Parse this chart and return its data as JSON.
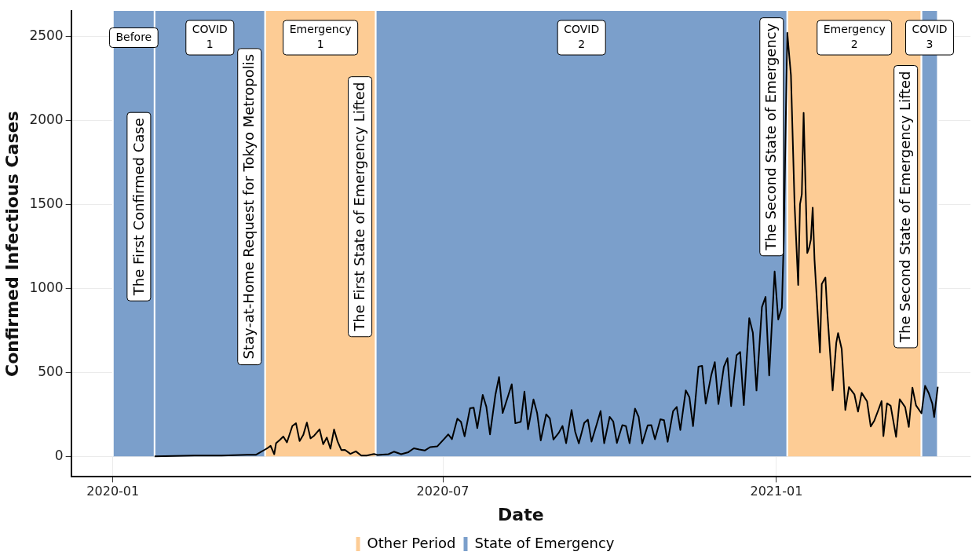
{
  "chart_data": {
    "type": "line",
    "xlabel": "Date",
    "ylabel": "Confirmed Infectious Cases",
    "xlim": [
      "2019-12-09",
      "2021-04-18"
    ],
    "xticks": [
      "2020-01",
      "2020-07",
      "2021-01"
    ],
    "ylim": [
      -122,
      2650
    ],
    "yticks": [
      0,
      500,
      1000,
      1500,
      2000,
      2500
    ],
    "grid": true,
    "legend": "bottom",
    "marker": "none",
    "line_style": "solid",
    "bands": [
      {
        "axis": "x",
        "from": "2020-01-01",
        "to": "2020-01-24",
        "label": "Before",
        "color": "#7b9fcb"
      },
      {
        "axis": "x",
        "from": "2020-01-24",
        "to": "2020-03-25",
        "label": "COVID\n1",
        "color": "#7b9fcb"
      },
      {
        "axis": "x",
        "from": "2020-03-25",
        "to": "2020-05-25",
        "label": "Emergency\n1",
        "color": "#fdcc95"
      },
      {
        "axis": "x",
        "from": "2020-05-25",
        "to": "2021-01-07",
        "label": "COVID\n2",
        "color": "#7b9fcb"
      },
      {
        "axis": "x",
        "from": "2021-01-07",
        "to": "2021-03-22",
        "label": "Emergency\n2",
        "color": "#fdcc95"
      },
      {
        "axis": "x",
        "from": "2021-03-22",
        "to": "2021-03-31",
        "label": "COVID\n3",
        "color": "#7b9fcb"
      }
    ],
    "annotations": [
      "The First Confirmed Case",
      "Stay-at-Home Request for Tokyo Metropolis",
      "The First State of Emergency Lifted",
      "The Second State of Emergency",
      "The Second State of Emergency Lifted"
    ],
    "series": [
      {
        "name": "Other Period",
        "color": "#fdcc95",
        "type": "area"
      },
      {
        "name": "State of Emergency",
        "color": "#7b9fcb",
        "type": "area"
      },
      {
        "color": "#000000",
        "x": [
          "2020-01-24",
          "2020-02-15",
          "2020-03-01",
          "2020-03-15",
          "2020-03-20",
          "2020-03-25",
          "2020-03-26",
          "2020-03-28",
          "2020-03-30",
          "2020-03-31",
          "2020-04-02",
          "2020-04-04",
          "2020-04-06",
          "2020-04-09",
          "2020-04-11",
          "2020-04-13",
          "2020-04-15",
          "2020-04-17",
          "2020-04-19",
          "2020-04-21",
          "2020-04-24",
          "2020-04-26",
          "2020-04-28",
          "2020-04-30",
          "2020-05-02",
          "2020-05-04",
          "2020-05-06",
          "2020-05-08",
          "2020-05-11",
          "2020-05-14",
          "2020-05-17",
          "2020-05-20",
          "2020-05-24",
          "2020-05-26",
          "2020-06-01",
          "2020-06-04",
          "2020-06-08",
          "2020-06-12",
          "2020-06-15",
          "2020-06-18",
          "2020-06-21",
          "2020-06-24",
          "2020-06-28",
          "2020-07-02",
          "2020-07-04",
          "2020-07-06",
          "2020-07-09",
          "2020-07-11",
          "2020-07-13",
          "2020-07-16",
          "2020-07-18",
          "2020-07-20",
          "2020-07-23",
          "2020-07-25",
          "2020-07-27",
          "2020-07-30",
          "2020-08-01",
          "2020-08-03",
          "2020-08-06",
          "2020-08-08",
          "2020-08-10",
          "2020-08-13",
          "2020-08-15",
          "2020-08-17",
          "2020-08-20",
          "2020-08-22",
          "2020-08-24",
          "2020-08-27",
          "2020-08-29",
          "2020-08-31",
          "2020-09-03",
          "2020-09-05",
          "2020-09-07",
          "2020-09-10",
          "2020-09-12",
          "2020-09-14",
          "2020-09-17",
          "2020-09-19",
          "2020-09-21",
          "2020-09-24",
          "2020-09-26",
          "2020-09-28",
          "2020-10-01",
          "2020-10-03",
          "2020-10-05",
          "2020-10-08",
          "2020-10-10",
          "2020-10-12",
          "2020-10-15",
          "2020-10-17",
          "2020-10-19",
          "2020-10-22",
          "2020-10-24",
          "2020-10-26",
          "2020-10-29",
          "2020-10-31",
          "2020-11-02",
          "2020-11-05",
          "2020-11-07",
          "2020-11-09",
          "2020-11-12",
          "2020-11-14",
          "2020-11-16",
          "2020-11-19",
          "2020-11-21",
          "2020-11-23",
          "2020-11-26",
          "2020-11-28",
          "2020-11-30",
          "2020-12-03",
          "2020-12-05",
          "2020-12-07",
          "2020-12-10",
          "2020-12-12",
          "2020-12-14",
          "2020-12-17",
          "2020-12-19",
          "2020-12-21",
          "2020-12-24",
          "2020-12-26",
          "2020-12-28",
          "2020-12-31",
          "2021-01-02",
          "2021-01-04",
          "2021-01-05",
          "2021-01-07",
          "2021-01-08",
          "2021-01-09",
          "2021-01-11",
          "2021-01-13",
          "2021-01-14",
          "2021-01-15",
          "2021-01-16",
          "2021-01-18",
          "2021-01-19",
          "2021-01-20",
          "2021-01-21",
          "2021-01-22",
          "2021-01-25",
          "2021-01-26",
          "2021-01-28",
          "2021-01-29",
          "2021-02-01",
          "2021-02-03",
          "2021-02-04",
          "2021-02-06",
          "2021-02-08",
          "2021-02-10",
          "2021-02-13",
          "2021-02-15",
          "2021-02-17",
          "2021-02-20",
          "2021-02-22",
          "2021-02-24",
          "2021-02-26",
          "2021-02-28",
          "2021-03-01",
          "2021-03-03",
          "2021-03-05",
          "2021-03-08",
          "2021-03-10",
          "2021-03-13",
          "2021-03-15",
          "2021-03-17",
          "2021-03-19",
          "2021-03-22",
          "2021-03-24",
          "2021-03-26",
          "2021-03-28",
          "2021-03-29",
          "2021-03-31"
        ],
        "values": [
          0,
          5,
          5,
          10,
          10,
          41,
          47,
          63,
          13,
          78,
          97,
          118,
          83,
          181,
          197,
          91,
          127,
          201,
          107,
          123,
          161,
          72,
          112,
          46,
          160,
          87,
          38,
          39,
          15,
          30,
          5,
          5,
          14,
          8,
          13,
          28,
          13,
          25,
          48,
          41,
          35,
          55,
          60,
          107,
          131,
          102,
          224,
          206,
          119,
          286,
          290,
          168,
          366,
          295,
          131,
          367,
          472,
          258,
          360,
          429,
          197,
          206,
          385,
          161,
          339,
          258,
          95,
          250,
          226,
          100,
          141,
          181,
          78,
          276,
          146,
          77,
          200,
          218,
          88,
          195,
          270,
          78,
          235,
          207,
          80,
          186,
          180,
          78,
          284,
          235,
          77,
          185,
          186,
          102,
          221,
          215,
          87,
          269,
          294,
          157,
          393,
          352,
          180,
          534,
          539,
          314,
          481,
          561,
          311,
          533,
          584,
          299,
          602,
          621,
          305,
          822,
          736,
          392,
          888,
          949,
          481,
          1100,
          814,
          884,
          1278,
          2520,
          2392,
          2268,
          1500,
          1020,
          1500,
          1560,
          2044,
          1210,
          1240,
          1290,
          1480,
          1170,
          618,
          1026,
          1064,
          868,
          393,
          676,
          734,
          639,
          276,
          412,
          369,
          266,
          378,
          327,
          178,
          213,
          270,
          329,
          121,
          316,
          301,
          116,
          340,
          293,
          175,
          409,
          303,
          256,
          420,
          376,
          313,
          234,
          414
        ]
      }
    ]
  }
}
